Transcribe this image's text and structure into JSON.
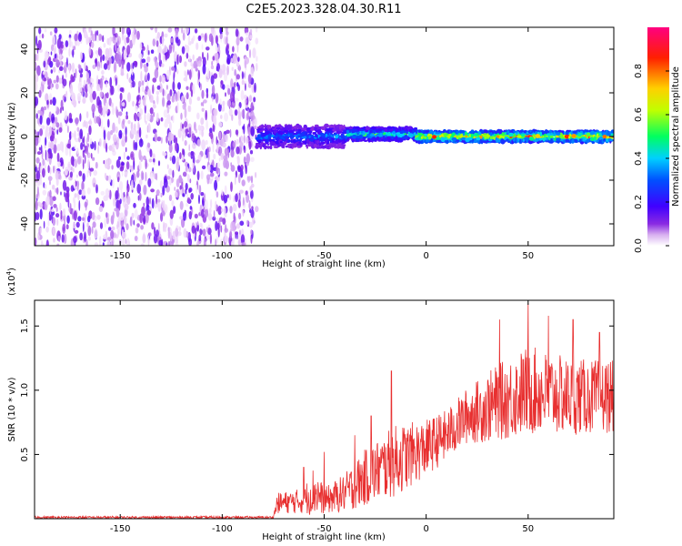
{
  "title": "C2E5.2023.328.04.30.R11",
  "colors": {
    "snr_line": "#e83030",
    "axis": "#000000",
    "colormap": [
      "#ffffff",
      "#e8c8f8",
      "#8a2be2",
      "#4000ff",
      "#0050ff",
      "#00d0ff",
      "#00ff60",
      "#c0ff00",
      "#ffd000",
      "#ff2000",
      "#ff0080"
    ]
  },
  "chart_data": [
    {
      "type": "heatmap",
      "name": "spectrogram",
      "xlabel": "Height of straight line (km)",
      "ylabel": "Frequency (Hz)",
      "xlim": [
        -192,
        92
      ],
      "ylim": [
        -50,
        50
      ],
      "xticks": [
        -150,
        -100,
        -50,
        0,
        50
      ],
      "yticks": [
        -40,
        -20,
        0,
        20,
        40
      ],
      "colorbar": {
        "label": "Normalized spectral amplitude",
        "range": [
          0,
          1
        ],
        "ticks": [
          "0.0",
          "0.2",
          "0.4",
          "0.6",
          "0.8"
        ]
      },
      "regions": [
        {
          "x_range": [
            -192,
            -83
          ],
          "description": "broadband noise",
          "amplitude": 0.15
        },
        {
          "x_range": [
            -83,
            -40
          ],
          "center_hz": 0,
          "width_hz": 10,
          "peak_amplitude": 0.4
        },
        {
          "x_range": [
            -40,
            -5
          ],
          "center_hz": 1,
          "width_hz": 6,
          "peak_amplitude": 0.6
        },
        {
          "x_range": [
            -5,
            92
          ],
          "center_hz": 0,
          "width_hz": 5,
          "peak_amplitude": 0.95
        }
      ]
    },
    {
      "type": "line",
      "name": "snr",
      "xlabel": "Height of straight line (km)",
      "ylabel": "SNR (10 * v/v)",
      "multiplier_label": "(x10",
      "multiplier_exp": "4",
      "multiplier_close": ")",
      "xlim": [
        -192,
        92
      ],
      "ylim": [
        0,
        1.7
      ],
      "xticks": [
        -150,
        -100,
        -50,
        0,
        50
      ],
      "yticks": [
        "0.5",
        "1.0",
        "1.5"
      ],
      "series": [
        {
          "envelope": [
            {
              "x": -192,
              "mean": 0.01,
              "spread": 0.01
            },
            {
              "x": -75,
              "mean": 0.01,
              "spread": 0.01
            },
            {
              "x": -73,
              "mean": 0.12,
              "spread": 0.08
            },
            {
              "x": -60,
              "mean": 0.14,
              "spread": 0.1
            },
            {
              "x": -55,
              "mean": 0.22,
              "spread": 0.2
            },
            {
              "x": -50,
              "mean": 0.14,
              "spread": 0.1
            },
            {
              "x": -40,
              "mean": 0.2,
              "spread": 0.15
            },
            {
              "x": -30,
              "mean": 0.32,
              "spread": 0.22
            },
            {
              "x": -15,
              "mean": 0.45,
              "spread": 0.28
            },
            {
              "x": 0,
              "mean": 0.55,
              "spread": 0.22
            },
            {
              "x": 10,
              "mean": 0.65,
              "spread": 0.2
            },
            {
              "x": 20,
              "mean": 0.8,
              "spread": 0.22
            },
            {
              "x": 35,
              "mean": 0.9,
              "spread": 0.3
            },
            {
              "x": 50,
              "mean": 1.0,
              "spread": 0.35
            },
            {
              "x": 70,
              "mean": 0.95,
              "spread": 0.3
            },
            {
              "x": 92,
              "mean": 0.95,
              "spread": 0.28
            }
          ],
          "spikes": [
            {
              "x": -17,
              "y": 1.15
            },
            {
              "x": -27,
              "y": 0.8
            },
            {
              "x": -35,
              "y": 0.65
            },
            {
              "x": -60,
              "y": 0.4
            },
            {
              "x": -50,
              "y": 0.52
            },
            {
              "x": 50,
              "y": 1.68
            },
            {
              "x": 36,
              "y": 1.55
            },
            {
              "x": 60,
              "y": 1.58
            },
            {
              "x": 72,
              "y": 1.55
            },
            {
              "x": 85,
              "y": 1.45
            }
          ]
        }
      ]
    }
  ]
}
